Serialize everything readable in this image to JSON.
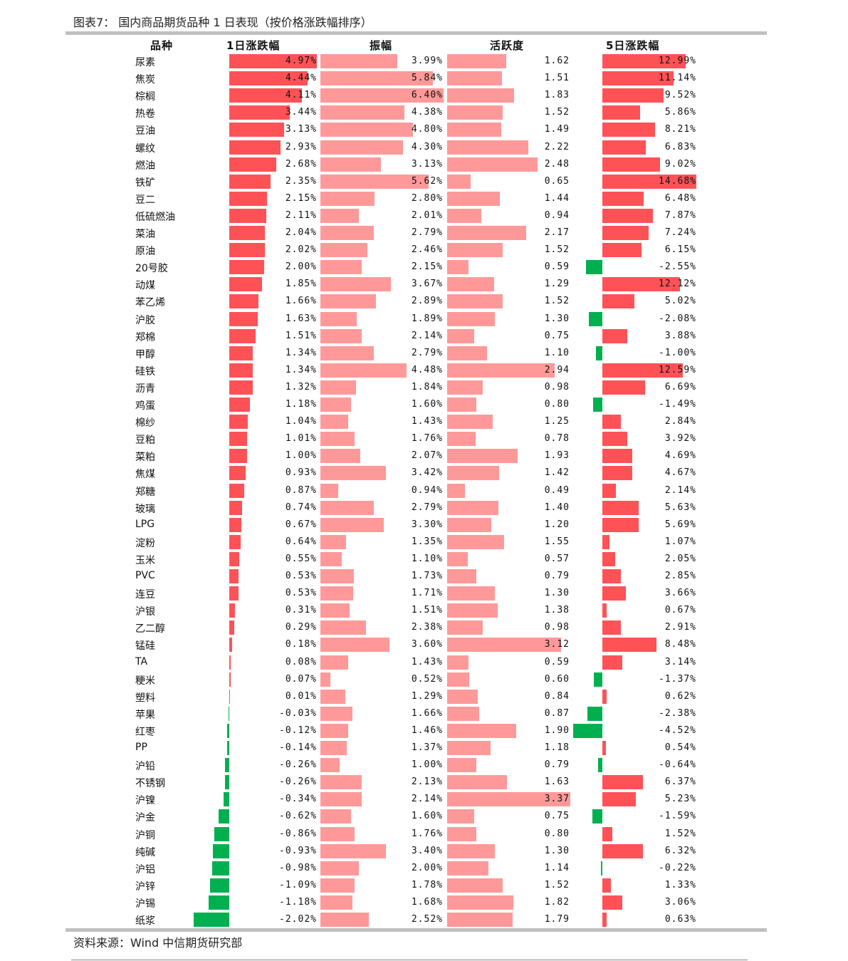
{
  "title": "图表7： 国内商品期货品种 1 日表现（按价格涨跌幅排序）",
  "source": "资料来源：Wind 中信期货研究部",
  "colors": {
    "positive": "#ff5257",
    "amplitude": "#ff9999",
    "negative": "#00b050"
  },
  "chart_data": {
    "type": "table",
    "columns": [
      "品种",
      "1日涨跌幅",
      "振幅",
      "活跃度",
      "5日涨跌幅"
    ],
    "rows": [
      [
        "尿素",
        4.97,
        3.99,
        1.62,
        12.99
      ],
      [
        "焦炭",
        4.44,
        5.84,
        1.51,
        11.14
      ],
      [
        "棕榈",
        4.11,
        6.4,
        1.83,
        9.52
      ],
      [
        "热卷",
        3.44,
        4.38,
        1.52,
        5.86
      ],
      [
        "豆油",
        3.13,
        4.8,
        1.49,
        8.21
      ],
      [
        "螺纹",
        2.93,
        4.3,
        2.22,
        6.83
      ],
      [
        "燃油",
        2.68,
        3.13,
        2.48,
        9.02
      ],
      [
        "铁矿",
        2.35,
        5.62,
        0.65,
        14.68
      ],
      [
        "豆二",
        2.15,
        2.8,
        1.44,
        6.48
      ],
      [
        "低硫燃油",
        2.11,
        2.01,
        0.94,
        7.87
      ],
      [
        "菜油",
        2.04,
        2.79,
        2.17,
        7.24
      ],
      [
        "原油",
        2.02,
        2.46,
        1.52,
        6.15
      ],
      [
        "20号胶",
        2.0,
        2.15,
        0.59,
        -2.55
      ],
      [
        "动煤",
        1.85,
        3.67,
        1.29,
        12.12
      ],
      [
        "苯乙烯",
        1.66,
        2.89,
        1.52,
        5.02
      ],
      [
        "沪胶",
        1.63,
        1.89,
        1.3,
        -2.08
      ],
      [
        "郑棉",
        1.51,
        2.14,
        0.75,
        3.88
      ],
      [
        "甲醇",
        1.34,
        2.79,
        1.1,
        -1.0
      ],
      [
        "硅铁",
        1.34,
        4.48,
        2.94,
        12.59
      ],
      [
        "沥青",
        1.32,
        1.84,
        0.98,
        6.69
      ],
      [
        "鸡蛋",
        1.18,
        1.6,
        0.8,
        -1.49
      ],
      [
        "棉纱",
        1.04,
        1.43,
        1.25,
        2.84
      ],
      [
        "豆粕",
        1.01,
        1.76,
        0.78,
        3.92
      ],
      [
        "菜粕",
        1.0,
        2.07,
        1.93,
        4.69
      ],
      [
        "焦煤",
        0.93,
        3.42,
        1.42,
        4.67
      ],
      [
        "郑糖",
        0.87,
        0.94,
        0.49,
        2.14
      ],
      [
        "玻璃",
        0.74,
        2.79,
        1.4,
        5.63
      ],
      [
        "LPG",
        0.67,
        3.3,
        1.2,
        5.69
      ],
      [
        "淀粉",
        0.64,
        1.35,
        1.55,
        1.07
      ],
      [
        "玉米",
        0.55,
        1.1,
        0.57,
        2.05
      ],
      [
        "PVC",
        0.53,
        1.73,
        0.79,
        2.85
      ],
      [
        "连豆",
        0.53,
        1.71,
        1.3,
        3.66
      ],
      [
        "沪银",
        0.31,
        1.51,
        1.38,
        0.67
      ],
      [
        "乙二醇",
        0.29,
        2.38,
        0.98,
        2.91
      ],
      [
        "锰硅",
        0.18,
        3.6,
        3.12,
        8.48
      ],
      [
        "TA",
        0.08,
        1.43,
        0.59,
        3.14
      ],
      [
        "粳米",
        0.07,
        0.52,
        0.6,
        -1.37
      ],
      [
        "塑料",
        0.01,
        1.29,
        0.84,
        0.62
      ],
      [
        "苹果",
        -0.03,
        1.66,
        0.87,
        -2.38
      ],
      [
        "红枣",
        -0.12,
        1.46,
        1.9,
        -4.52
      ],
      [
        "PP",
        -0.14,
        1.37,
        1.18,
        0.54
      ],
      [
        "沪铅",
        -0.26,
        1.0,
        0.79,
        -0.64
      ],
      [
        "不锈钢",
        -0.26,
        2.13,
        1.63,
        6.37
      ],
      [
        "沪镍",
        -0.34,
        2.14,
        3.37,
        5.23
      ],
      [
        "沪金",
        -0.62,
        1.6,
        0.75,
        -1.59
      ],
      [
        "沪铜",
        -0.86,
        1.76,
        0.8,
        1.52
      ],
      [
        "纯碱",
        -0.93,
        3.4,
        1.3,
        6.32
      ],
      [
        "沪铝",
        -0.98,
        2.0,
        1.14,
        -0.22
      ],
      [
        "沪锌",
        -1.09,
        1.78,
        1.52,
        1.33
      ],
      [
        "沪锡",
        -1.18,
        1.68,
        1.82,
        3.06
      ],
      [
        "纸浆",
        -2.02,
        2.52,
        1.79,
        0.63
      ]
    ]
  }
}
